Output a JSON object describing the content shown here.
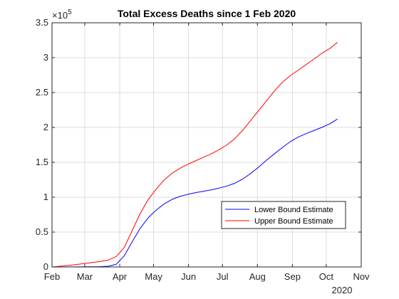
{
  "chart_data": {
    "type": "line",
    "title": "Total Excess Deaths since 1 Feb 2020",
    "xlabel": "",
    "ylabel": "",
    "x_tick_labels": [
      "Feb",
      "Mar",
      "Apr",
      "May",
      "Jun",
      "Jul",
      "Aug",
      "Sep",
      "Oct",
      "Nov"
    ],
    "x_tick_dates": [
      "2020-02-01",
      "2020-03-01",
      "2020-04-01",
      "2020-05-01",
      "2020-06-01",
      "2020-07-01",
      "2020-08-01",
      "2020-09-01",
      "2020-10-01",
      "2020-11-01"
    ],
    "x_year_label": "2020",
    "xlim": [
      "2020-02-01",
      "2020-11-01"
    ],
    "y_tick_labels": [
      "0",
      "0.5",
      "1",
      "1.5",
      "2",
      "2.5",
      "3",
      "3.5"
    ],
    "y_tick_values": [
      0,
      50000,
      100000,
      150000,
      200000,
      250000,
      300000,
      350000
    ],
    "y_exponent": "×10",
    "y_exponent_power": "5",
    "ylim": [
      0,
      350000
    ],
    "grid": true,
    "legend_position": "lower-right",
    "series": [
      {
        "name": "Lower Bound Estimate",
        "color": "#0000ff",
        "x": [
          "2020-02-01",
          "2020-02-15",
          "2020-03-01",
          "2020-03-15",
          "2020-03-22",
          "2020-03-29",
          "2020-04-05",
          "2020-04-12",
          "2020-04-19",
          "2020-04-26",
          "2020-05-03",
          "2020-05-10",
          "2020-05-17",
          "2020-05-24",
          "2020-05-31",
          "2020-06-07",
          "2020-06-14",
          "2020-06-21",
          "2020-06-28",
          "2020-07-05",
          "2020-07-12",
          "2020-07-19",
          "2020-07-26",
          "2020-08-02",
          "2020-08-09",
          "2020-08-16",
          "2020-08-23",
          "2020-08-30",
          "2020-09-06",
          "2020-09-13",
          "2020-09-20",
          "2020-09-27",
          "2020-10-04",
          "2020-10-11"
        ],
        "values": [
          0,
          0,
          200,
          500,
          1000,
          4000,
          16000,
          36000,
          55000,
          70000,
          81000,
          90000,
          96500,
          101000,
          104000,
          106500,
          108500,
          110500,
          113000,
          116000,
          120000,
          126000,
          134000,
          143000,
          153000,
          162000,
          171000,
          179500,
          186000,
          191000,
          195500,
          200000,
          205000,
          212000
        ]
      },
      {
        "name": "Upper Bound Estimate",
        "color": "#ff0000",
        "x": [
          "2020-02-01",
          "2020-02-15",
          "2020-03-01",
          "2020-03-15",
          "2020-03-22",
          "2020-03-29",
          "2020-04-05",
          "2020-04-12",
          "2020-04-19",
          "2020-04-26",
          "2020-05-03",
          "2020-05-10",
          "2020-05-17",
          "2020-05-24",
          "2020-05-31",
          "2020-06-07",
          "2020-06-14",
          "2020-06-21",
          "2020-06-28",
          "2020-07-05",
          "2020-07-12",
          "2020-07-19",
          "2020-07-26",
          "2020-08-02",
          "2020-08-09",
          "2020-08-16",
          "2020-08-23",
          "2020-08-30",
          "2020-09-06",
          "2020-09-13",
          "2020-09-20",
          "2020-09-27",
          "2020-10-04",
          "2020-10-11"
        ],
        "values": [
          0,
          2000,
          5000,
          8000,
          10000,
          15000,
          28000,
          52000,
          76000,
          96000,
          111000,
          124000,
          134000,
          141000,
          147000,
          152000,
          157000,
          162000,
          168000,
          175000,
          184000,
          196000,
          210000,
          224000,
          238000,
          252000,
          264500,
          274000,
          282000,
          290000,
          298000,
          306000,
          313000,
          322000
        ]
      }
    ]
  }
}
